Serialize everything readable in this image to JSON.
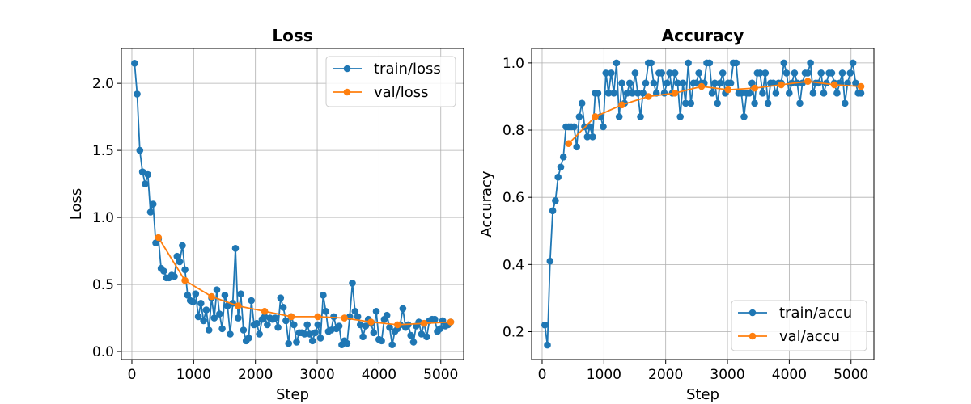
{
  "chart_data": [
    {
      "type": "line",
      "title": "Loss",
      "xlabel": "Step",
      "ylabel": "Loss",
      "xlim": [
        -170,
        5370
      ],
      "ylim": [
        -0.06,
        2.26
      ],
      "xticks": [
        0,
        1000,
        2000,
        3000,
        4000,
        5000
      ],
      "yticks": [
        0.0,
        0.5,
        1.0,
        1.5,
        2.0
      ],
      "ytick_decimals": 1,
      "grid": true,
      "legend": "upper right",
      "series": [
        {
          "name": "train/loss",
          "color": "#1f77b4",
          "x": [
            43,
            86,
            129,
            172,
            215,
            258,
            301,
            344,
            387,
            430,
            473,
            516,
            559,
            602,
            645,
            688,
            731,
            774,
            817,
            860,
            903,
            946,
            989,
            1032,
            1075,
            1118,
            1161,
            1204,
            1247,
            1290,
            1333,
            1376,
            1419,
            1462,
            1505,
            1548,
            1591,
            1634,
            1677,
            1720,
            1763,
            1806,
            1849,
            1892,
            1935,
            1978,
            2021,
            2064,
            2107,
            2150,
            2193,
            2236,
            2279,
            2322,
            2365,
            2408,
            2451,
            2494,
            2537,
            2580,
            2623,
            2666,
            2709,
            2752,
            2795,
            2838,
            2881,
            2924,
            2967,
            3010,
            3053,
            3096,
            3139,
            3182,
            3225,
            3268,
            3311,
            3354,
            3397,
            3440,
            3483,
            3526,
            3569,
            3612,
            3655,
            3698,
            3741,
            3784,
            3827,
            3870,
            3913,
            3956,
            3999,
            4042,
            4085,
            4128,
            4171,
            4214,
            4257,
            4300,
            4343,
            4386,
            4429,
            4472,
            4515,
            4558,
            4601,
            4644,
            4687,
            4730,
            4773,
            4816,
            4859,
            4902,
            4945,
            4988,
            5031,
            5074,
            5117,
            5160
          ],
          "y": [
            2.15,
            1.92,
            1.5,
            1.34,
            1.25,
            1.32,
            1.04,
            1.1,
            0.81,
            0.84,
            0.62,
            0.6,
            0.55,
            0.55,
            0.57,
            0.56,
            0.71,
            0.67,
            0.79,
            0.61,
            0.42,
            0.38,
            0.37,
            0.43,
            0.26,
            0.36,
            0.23,
            0.31,
            0.16,
            0.4,
            0.25,
            0.46,
            0.28,
            0.17,
            0.42,
            0.34,
            0.13,
            0.36,
            0.77,
            0.25,
            0.43,
            0.16,
            0.08,
            0.1,
            0.38,
            0.2,
            0.21,
            0.13,
            0.24,
            0.26,
            0.2,
            0.25,
            0.24,
            0.25,
            0.18,
            0.4,
            0.33,
            0.23,
            0.06,
            0.26,
            0.2,
            0.07,
            0.14,
            0.14,
            0.13,
            0.2,
            0.13,
            0.08,
            0.14,
            0.2,
            0.1,
            0.42,
            0.3,
            0.15,
            0.16,
            0.26,
            0.17,
            0.19,
            0.05,
            0.08,
            0.06,
            0.26,
            0.51,
            0.3,
            0.26,
            0.2,
            0.11,
            0.19,
            0.24,
            0.21,
            0.14,
            0.3,
            0.09,
            0.08,
            0.24,
            0.27,
            0.18,
            0.05,
            0.15,
            0.17,
            0.2,
            0.32,
            0.18,
            0.2,
            0.12,
            0.07,
            0.19,
            0.22,
            0.13,
            0.21,
            0.11,
            0.23,
            0.24,
            0.24,
            0.15,
            0.17,
            0.23,
            0.19,
            0.2,
            0.22
          ]
        },
        {
          "name": "val/loss",
          "color": "#ff7f0e",
          "x": [
            430,
            860,
            1290,
            1720,
            2150,
            2580,
            3010,
            3440,
            3870,
            4300,
            4730,
            5160
          ],
          "y": [
            0.85,
            0.53,
            0.41,
            0.34,
            0.3,
            0.26,
            0.26,
            0.25,
            0.22,
            0.2,
            0.21,
            0.22
          ]
        }
      ]
    },
    {
      "type": "line",
      "title": "Accuracy",
      "xlabel": "Step",
      "ylabel": "Accuracy",
      "xlim": [
        -170,
        5370
      ],
      "ylim": [
        0.117,
        1.043
      ],
      "xticks": [
        0,
        1000,
        2000,
        3000,
        4000,
        5000
      ],
      "yticks": [
        0.2,
        0.4,
        0.6,
        0.8,
        1.0
      ],
      "ytick_decimals": 1,
      "grid": true,
      "legend": "lower right",
      "series": [
        {
          "name": "train/accu",
          "color": "#1f77b4",
          "x": [
            43,
            86,
            129,
            172,
            215,
            258,
            301,
            344,
            387,
            430,
            473,
            516,
            559,
            602,
            645,
            688,
            731,
            774,
            817,
            860,
            903,
            946,
            989,
            1032,
            1075,
            1118,
            1161,
            1204,
            1247,
            1290,
            1333,
            1376,
            1419,
            1462,
            1505,
            1548,
            1591,
            1634,
            1677,
            1720,
            1763,
            1806,
            1849,
            1892,
            1935,
            1978,
            2021,
            2064,
            2107,
            2150,
            2193,
            2236,
            2279,
            2322,
            2365,
            2408,
            2451,
            2494,
            2537,
            2580,
            2623,
            2666,
            2709,
            2752,
            2795,
            2838,
            2881,
            2924,
            2967,
            3010,
            3053,
            3096,
            3139,
            3182,
            3225,
            3268,
            3311,
            3354,
            3397,
            3440,
            3483,
            3526,
            3569,
            3612,
            3655,
            3698,
            3741,
            3784,
            3827,
            3870,
            3913,
            3956,
            3999,
            4042,
            4085,
            4128,
            4171,
            4214,
            4257,
            4300,
            4343,
            4386,
            4429,
            4472,
            4515,
            4558,
            4601,
            4644,
            4687,
            4730,
            4773,
            4816,
            4859,
            4902,
            4945,
            4988,
            5031,
            5074,
            5117,
            5160
          ],
          "y": [
            0.22,
            0.16,
            0.41,
            0.56,
            0.59,
            0.66,
            0.69,
            0.72,
            0.81,
            0.81,
            0.81,
            0.81,
            0.75,
            0.84,
            0.88,
            0.81,
            0.78,
            0.81,
            0.78,
            0.91,
            0.91,
            0.84,
            0.81,
            0.97,
            0.91,
            0.97,
            0.91,
            1.0,
            0.84,
            0.94,
            0.88,
            0.91,
            0.94,
            0.91,
            0.97,
            0.91,
            0.84,
            0.91,
            0.94,
            1.0,
            1.0,
            0.94,
            0.91,
            0.97,
            0.97,
            0.91,
            0.94,
            0.97,
            0.91,
            0.97,
            0.94,
            0.84,
            0.94,
            0.88,
            1.0,
            0.88,
            0.94,
            0.94,
            0.97,
            0.94,
            0.94,
            1.0,
            1.0,
            0.91,
            0.94,
            0.88,
            0.94,
            0.97,
            0.91,
            0.94,
            0.94,
            1.0,
            1.0,
            0.91,
            0.91,
            0.84,
            0.91,
            0.91,
            0.94,
            0.88,
            0.97,
            0.97,
            0.91,
            0.97,
            0.88,
            0.94,
            0.94,
            0.91,
            0.94,
            0.94,
            1.0,
            0.97,
            0.91,
            0.94,
            0.97,
            0.94,
            0.88,
            0.94,
            0.97,
            0.97,
            1.0,
            0.91,
            0.94,
            0.94,
            0.97,
            0.91,
            0.94,
            0.97,
            0.97,
            0.94,
            0.91,
            0.94,
            0.97,
            0.88,
            0.94,
            0.97,
            1.0,
            0.94,
            0.91,
            0.91
          ]
        },
        {
          "name": "val/accu",
          "color": "#ff7f0e",
          "x": [
            430,
            860,
            1290,
            1720,
            2150,
            2580,
            3010,
            3440,
            3870,
            4300,
            4730,
            5160
          ],
          "y": [
            0.76,
            0.84,
            0.875,
            0.9,
            0.91,
            0.93,
            0.92,
            0.925,
            0.935,
            0.945,
            0.935,
            0.93
          ]
        }
      ]
    }
  ]
}
